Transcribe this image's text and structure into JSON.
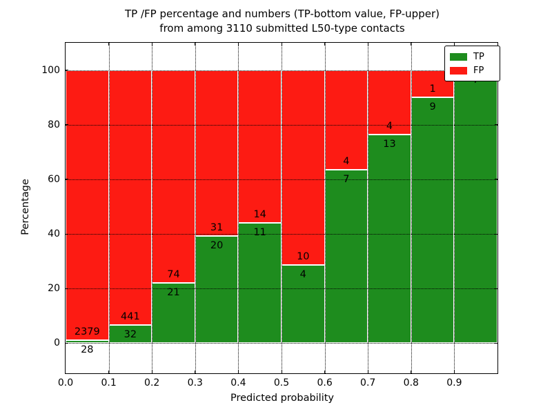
{
  "figure": {
    "title_line1": "TP /FP percentage and numbers (TP-bottom value, FP-upper)",
    "title_line2": "from among 3110 submitted L50-type contacts"
  },
  "chart_data": {
    "type": "bar",
    "stacked": true,
    "title": "TP /FP percentage and numbers (TP-bottom value, FP-upper) from among 3110 submitted L50-type contacts",
    "xlabel": "Predicted probability",
    "ylabel": "Percentage",
    "total_contacts": 3110,
    "categories": [
      "0.0-0.1",
      "0.1-0.2",
      "0.2-0.3",
      "0.3-0.4",
      "0.4-0.5",
      "0.5-0.6",
      "0.6-0.7",
      "0.7-0.8",
      "0.8-0.9",
      "0.9-1.0"
    ],
    "series": [
      {
        "name": "TP",
        "color": "#1e8c1e",
        "counts": [
          28,
          32,
          21,
          20,
          11,
          4,
          7,
          13,
          9,
          7
        ],
        "percentages": [
          1.163,
          6.765,
          22.105,
          39.216,
          44.0,
          28.571,
          63.636,
          76.471,
          90.0,
          100.0
        ]
      },
      {
        "name": "FP",
        "color": "#fd1b13",
        "counts": [
          2379,
          441,
          74,
          31,
          14,
          10,
          4,
          4,
          1,
          0
        ],
        "percentages": [
          98.837,
          93.235,
          77.895,
          60.784,
          56.0,
          71.429,
          36.364,
          23.529,
          10.0,
          0.0
        ]
      }
    ],
    "annotations": [
      {
        "tp_label": "28",
        "fp_label": "2379"
      },
      {
        "tp_label": "32",
        "fp_label": "441"
      },
      {
        "tp_label": "21",
        "fp_label": "74"
      },
      {
        "tp_label": "20",
        "fp_label": "31"
      },
      {
        "tp_label": "11",
        "fp_label": "14"
      },
      {
        "tp_label": "4",
        "fp_label": "10"
      },
      {
        "tp_label": "7",
        "fp_label": "4"
      },
      {
        "tp_label": "13",
        "fp_label": "4"
      },
      {
        "tp_label": "9",
        "fp_label": "1"
      },
      {
        "tp_label": "7",
        "fp_label": ""
      }
    ],
    "xticks": [
      "0.0",
      "0.1",
      "0.2",
      "0.3",
      "0.4",
      "0.5",
      "0.6",
      "0.7",
      "0.8",
      "0.9"
    ],
    "yticks": [
      0,
      20,
      40,
      60,
      80,
      100
    ],
    "xlim": [
      0.0,
      1.0
    ],
    "ylim": [
      -11,
      110
    ],
    "grid": true,
    "legend_position": "upper right"
  }
}
